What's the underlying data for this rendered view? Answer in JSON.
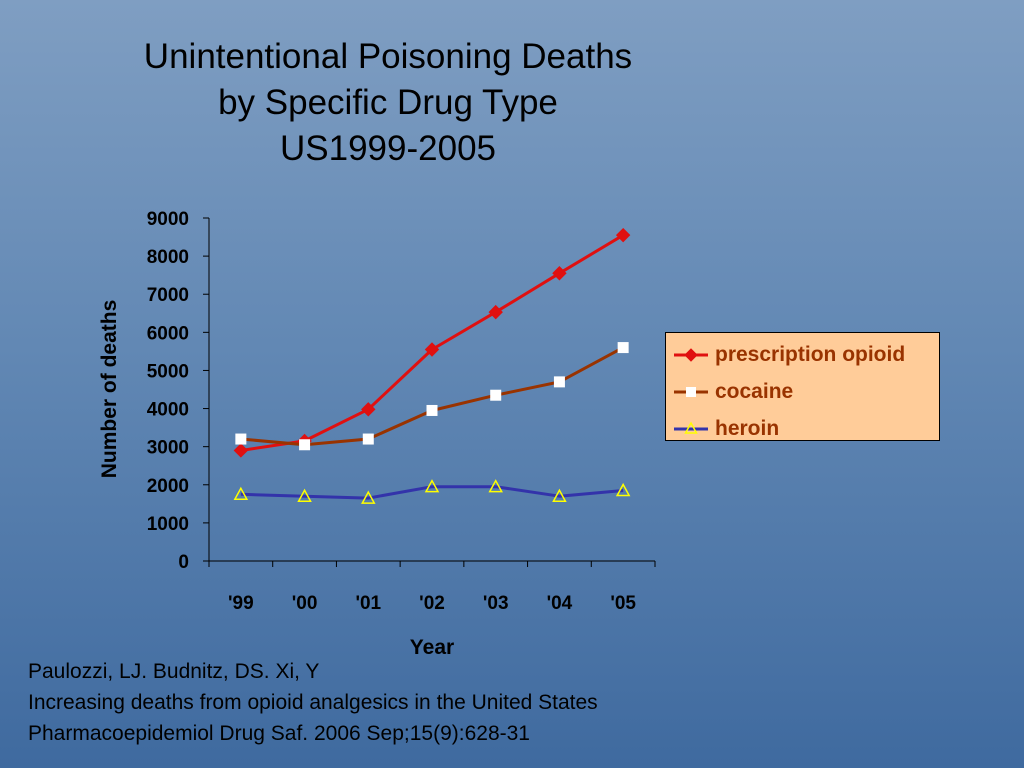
{
  "title": {
    "line1": "Unintentional Poisoning Deaths",
    "line2": "by Specific Drug Type",
    "line3": "US1999-2005"
  },
  "citation": {
    "line1": "Paulozzi, LJ. Budnitz, DS. Xi, Y",
    "line2": "Increasing deaths from opioid analgesics in the United States",
    "line3": "Pharmacoepidemiol Drug Saf. 2006 Sep;15(9):628-31"
  },
  "chart_data": {
    "type": "line",
    "title": "Unintentional Poisoning Deaths by Specific Drug Type US1999-2005",
    "xlabel": "Year",
    "ylabel": "Number of deaths",
    "categories": [
      "'99",
      "'00",
      "'01",
      "'02",
      "'03",
      "'04",
      "'05"
    ],
    "ylim": [
      0,
      9000
    ],
    "yticks": [
      0,
      1000,
      2000,
      3000,
      4000,
      5000,
      6000,
      7000,
      8000,
      9000
    ],
    "grid": false,
    "legend_position": "right",
    "series": [
      {
        "name": "prescription opioid",
        "values": [
          2900,
          3150,
          3980,
          5550,
          6530,
          7550,
          8550
        ],
        "color": "#e01010",
        "marker": "diamond"
      },
      {
        "name": "cocaine",
        "values": [
          3200,
          3050,
          3200,
          3950,
          4350,
          4700,
          5600
        ],
        "color": "#993300",
        "marker": "square"
      },
      {
        "name": "heroin",
        "values": [
          1750,
          1700,
          1650,
          1950,
          1950,
          1700,
          1850
        ],
        "color": "#3333aa",
        "marker": "triangle"
      }
    ]
  }
}
